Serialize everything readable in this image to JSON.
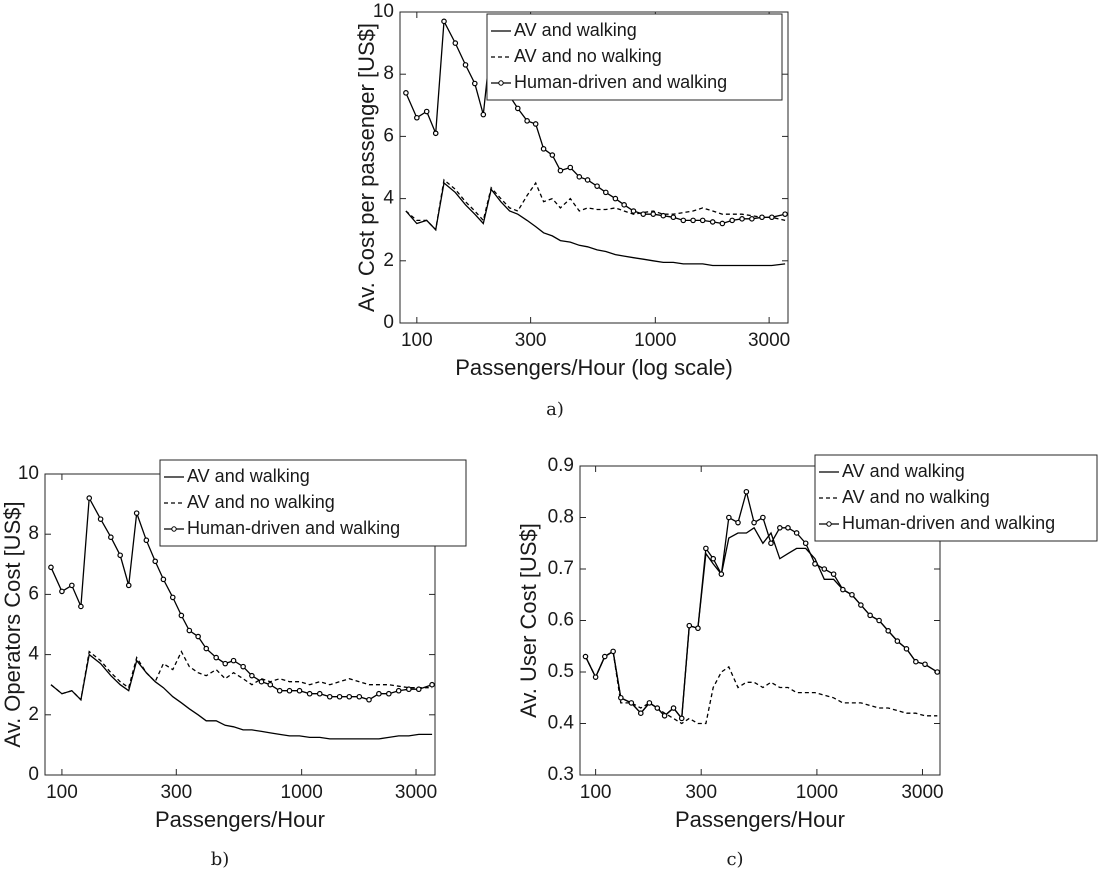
{
  "chart_data": [
    {
      "type": "line",
      "caption": "a)",
      "xlabel": "Passengers/Hour (log scale)",
      "ylabel": "Av. Cost per passenger [US$]",
      "xscale": "log",
      "xlim": [
        85,
        3600
      ],
      "xticks": [
        100,
        300,
        1000,
        3000
      ],
      "ylim": [
        0,
        10
      ],
      "yticks": [
        0,
        2,
        4,
        6,
        8,
        10
      ],
      "legend": "upper right",
      "x": [
        90,
        100,
        110,
        120,
        130,
        145,
        160,
        175,
        190,
        205,
        225,
        245,
        265,
        290,
        315,
        340,
        370,
        400,
        440,
        480,
        520,
        570,
        620,
        680,
        740,
        810,
        890,
        980,
        1080,
        1190,
        1310,
        1440,
        1580,
        1740,
        1910,
        2100,
        2310,
        2540,
        2800,
        3080,
        3500
      ],
      "series": [
        {
          "name": "AV and walking",
          "color": "#000000",
          "linestyle": "solid",
          "marker": "none",
          "values": [
            3.6,
            3.2,
            3.3,
            3.0,
            4.5,
            4.2,
            3.8,
            3.5,
            3.2,
            4.3,
            3.9,
            3.6,
            3.5,
            3.3,
            3.1,
            2.9,
            2.8,
            2.65,
            2.6,
            2.5,
            2.45,
            2.35,
            2.3,
            2.2,
            2.15,
            2.1,
            2.05,
            2.0,
            1.95,
            1.95,
            1.9,
            1.9,
            1.9,
            1.85,
            1.85,
            1.85,
            1.85,
            1.85,
            1.85,
            1.85,
            1.9
          ]
        },
        {
          "name": "AV and no walking",
          "color": "#000000",
          "linestyle": "dashed",
          "marker": "none",
          "values": [
            3.6,
            3.3,
            3.3,
            3.0,
            4.6,
            4.3,
            3.9,
            3.6,
            3.3,
            4.35,
            4.0,
            3.7,
            3.6,
            4.1,
            4.5,
            3.9,
            4.0,
            3.7,
            4.0,
            3.6,
            3.7,
            3.65,
            3.65,
            3.7,
            3.6,
            3.5,
            3.55,
            3.6,
            3.5,
            3.5,
            3.55,
            3.6,
            3.7,
            3.6,
            3.5,
            3.5,
            3.5,
            3.45,
            3.4,
            3.4,
            3.3
          ]
        },
        {
          "name": "Human-driven and walking",
          "color": "#000000",
          "linestyle": "solid",
          "marker": "circle",
          "values": [
            7.4,
            6.6,
            6.8,
            6.1,
            9.7,
            9.0,
            8.3,
            7.7,
            6.7,
            9.1,
            8.0,
            7.3,
            6.9,
            6.5,
            6.4,
            5.6,
            5.4,
            4.9,
            5.0,
            4.7,
            4.6,
            4.4,
            4.2,
            4.0,
            3.8,
            3.6,
            3.5,
            3.5,
            3.45,
            3.4,
            3.3,
            3.3,
            3.3,
            3.25,
            3.2,
            3.3,
            3.35,
            3.35,
            3.4,
            3.4,
            3.5
          ]
        }
      ]
    },
    {
      "type": "line",
      "caption": "b)",
      "xlabel": "Passengers/Hour",
      "ylabel": "Av. Operators Cost [US$]",
      "xscale": "log",
      "xlim": [
        85,
        3600
      ],
      "xticks": [
        100,
        300,
        1000,
        3000
      ],
      "ylim": [
        0,
        10
      ],
      "yticks": [
        0,
        2,
        4,
        6,
        8,
        10
      ],
      "legend": "upper right",
      "x": [
        90,
        100,
        110,
        120,
        130,
        145,
        160,
        175,
        190,
        205,
        225,
        245,
        265,
        290,
        315,
        340,
        370,
        400,
        440,
        480,
        520,
        570,
        620,
        680,
        740,
        810,
        890,
        980,
        1080,
        1190,
        1310,
        1440,
        1580,
        1740,
        1910,
        2100,
        2310,
        2540,
        2800,
        3080,
        3500
      ],
      "series": [
        {
          "name": "AV and walking",
          "color": "#000000",
          "linestyle": "solid",
          "marker": "none",
          "values": [
            3.0,
            2.7,
            2.8,
            2.5,
            4.0,
            3.7,
            3.3,
            3.0,
            2.8,
            3.8,
            3.4,
            3.1,
            2.9,
            2.6,
            2.4,
            2.2,
            2.0,
            1.8,
            1.8,
            1.65,
            1.6,
            1.5,
            1.5,
            1.45,
            1.4,
            1.35,
            1.3,
            1.3,
            1.25,
            1.25,
            1.2,
            1.2,
            1.2,
            1.2,
            1.2,
            1.2,
            1.25,
            1.3,
            1.3,
            1.35,
            1.35
          ]
        },
        {
          "name": "AV and no walking",
          "color": "#000000",
          "linestyle": "dashed",
          "marker": "none",
          "values": [
            3.0,
            2.7,
            2.8,
            2.5,
            4.1,
            3.8,
            3.4,
            3.1,
            2.9,
            3.9,
            3.4,
            3.1,
            3.7,
            3.5,
            4.1,
            3.6,
            3.4,
            3.3,
            3.5,
            3.2,
            3.4,
            3.2,
            3.0,
            3.2,
            3.1,
            3.2,
            3.1,
            3.1,
            3.0,
            3.1,
            3.0,
            3.1,
            3.2,
            3.1,
            3.0,
            3.0,
            3.0,
            2.95,
            2.9,
            2.9,
            2.9
          ]
        },
        {
          "name": "Human-driven and walking",
          "color": "#000000",
          "linestyle": "solid",
          "marker": "circle",
          "values": [
            6.9,
            6.1,
            6.3,
            5.6,
            9.2,
            8.5,
            7.9,
            7.3,
            6.3,
            8.7,
            7.8,
            7.1,
            6.5,
            5.9,
            5.3,
            4.8,
            4.6,
            4.2,
            3.9,
            3.7,
            3.8,
            3.6,
            3.3,
            3.1,
            3.0,
            2.8,
            2.8,
            2.8,
            2.7,
            2.7,
            2.6,
            2.6,
            2.6,
            2.6,
            2.5,
            2.7,
            2.7,
            2.8,
            2.85,
            2.85,
            3.0
          ]
        }
      ]
    },
    {
      "type": "line",
      "caption": "c)",
      "xlabel": "Passengers/Hour",
      "ylabel": "Av. User Cost [US$]",
      "xscale": "log",
      "xlim": [
        85,
        3600
      ],
      "xticks": [
        100,
        300,
        1000,
        3000
      ],
      "ylim": [
        0.3,
        0.9
      ],
      "yticks": [
        0.3,
        0.4,
        0.5,
        0.6,
        0.7,
        0.8,
        0.9
      ],
      "legend": "upper right",
      "x": [
        90,
        100,
        110,
        120,
        130,
        145,
        160,
        175,
        190,
        205,
        225,
        245,
        265,
        290,
        315,
        340,
        370,
        400,
        440,
        480,
        520,
        570,
        620,
        680,
        740,
        810,
        890,
        980,
        1080,
        1190,
        1310,
        1440,
        1580,
        1740,
        1910,
        2100,
        2310,
        2540,
        2800,
        3080,
        3500
      ],
      "series": [
        {
          "name": "AV and walking",
          "color": "#000000",
          "linestyle": "solid",
          "marker": "none",
          "values": [
            0.53,
            0.49,
            0.53,
            0.54,
            0.45,
            0.44,
            0.42,
            0.44,
            0.43,
            0.415,
            0.43,
            0.41,
            0.59,
            0.585,
            0.73,
            0.71,
            0.69,
            0.76,
            0.77,
            0.77,
            0.78,
            0.75,
            0.77,
            0.72,
            0.73,
            0.74,
            0.74,
            0.72,
            0.68,
            0.68,
            0.66,
            0.65,
            0.63,
            0.61,
            0.6,
            0.58,
            0.56,
            0.545,
            0.52,
            0.515,
            0.5
          ]
        },
        {
          "name": "AV and no walking",
          "color": "#000000",
          "linestyle": "dashed",
          "marker": "none",
          "values": [
            0.53,
            0.49,
            0.53,
            0.54,
            0.44,
            0.44,
            0.43,
            0.44,
            0.43,
            0.42,
            0.41,
            0.4,
            0.41,
            0.4,
            0.4,
            0.47,
            0.5,
            0.51,
            0.47,
            0.48,
            0.48,
            0.47,
            0.48,
            0.47,
            0.47,
            0.46,
            0.46,
            0.46,
            0.455,
            0.45,
            0.44,
            0.44,
            0.44,
            0.435,
            0.43,
            0.43,
            0.425,
            0.42,
            0.42,
            0.415,
            0.415
          ]
        },
        {
          "name": "Human-driven and walking",
          "color": "#000000",
          "linestyle": "solid",
          "marker": "circle",
          "values": [
            0.53,
            0.49,
            0.53,
            0.54,
            0.45,
            0.44,
            0.42,
            0.44,
            0.43,
            0.415,
            0.43,
            0.41,
            0.59,
            0.585,
            0.74,
            0.72,
            0.69,
            0.8,
            0.79,
            0.85,
            0.79,
            0.8,
            0.75,
            0.78,
            0.78,
            0.77,
            0.75,
            0.71,
            0.7,
            0.69,
            0.66,
            0.65,
            0.63,
            0.61,
            0.6,
            0.58,
            0.56,
            0.545,
            0.52,
            0.515,
            0.5
          ]
        }
      ]
    }
  ]
}
